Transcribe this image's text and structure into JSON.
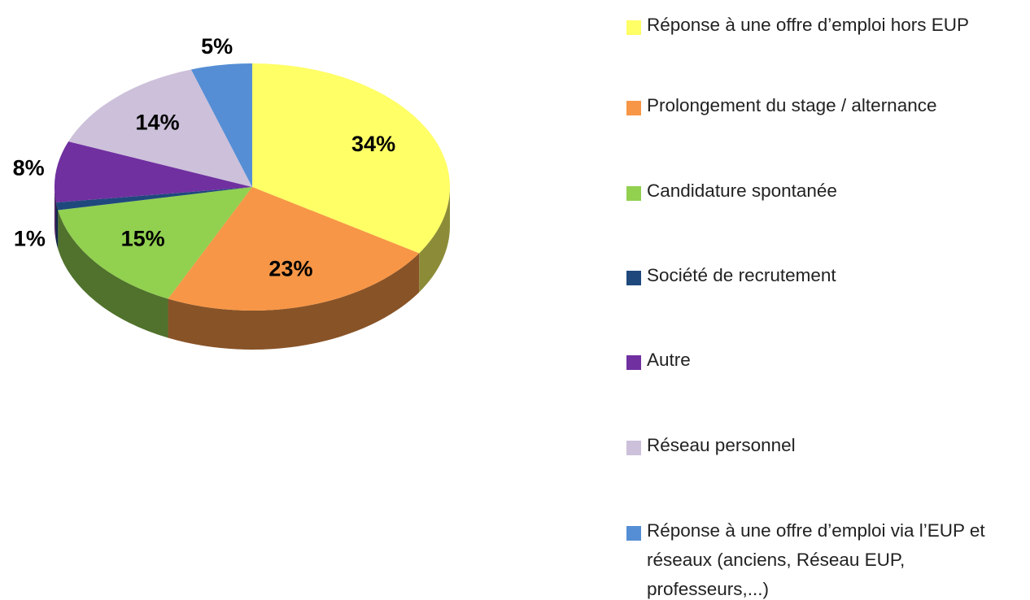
{
  "chart_data": {
    "type": "pie",
    "categories": [
      "Réponse à une offre d’emploi hors EUP",
      "Prolongement du stage / alternance",
      "Candidature spontanée",
      "Société de recrutement",
      "Autre",
      "Réseau personnel",
      "Réponse à une offre d’emploi via l’EUP et réseaux (anciens, Réseau EUP, professeurs,...)"
    ],
    "values": [
      34,
      23,
      15,
      1,
      8,
      14,
      5
    ],
    "value_labels": [
      "34%",
      "23%",
      "15%",
      "1%",
      "8%",
      "14%",
      "5%"
    ],
    "colors": [
      "#ffff66",
      "#f79646",
      "#92d050",
      "#1f497d",
      "#7030a0",
      "#ccc0da",
      "#558ed5"
    ],
    "legend": "right"
  }
}
